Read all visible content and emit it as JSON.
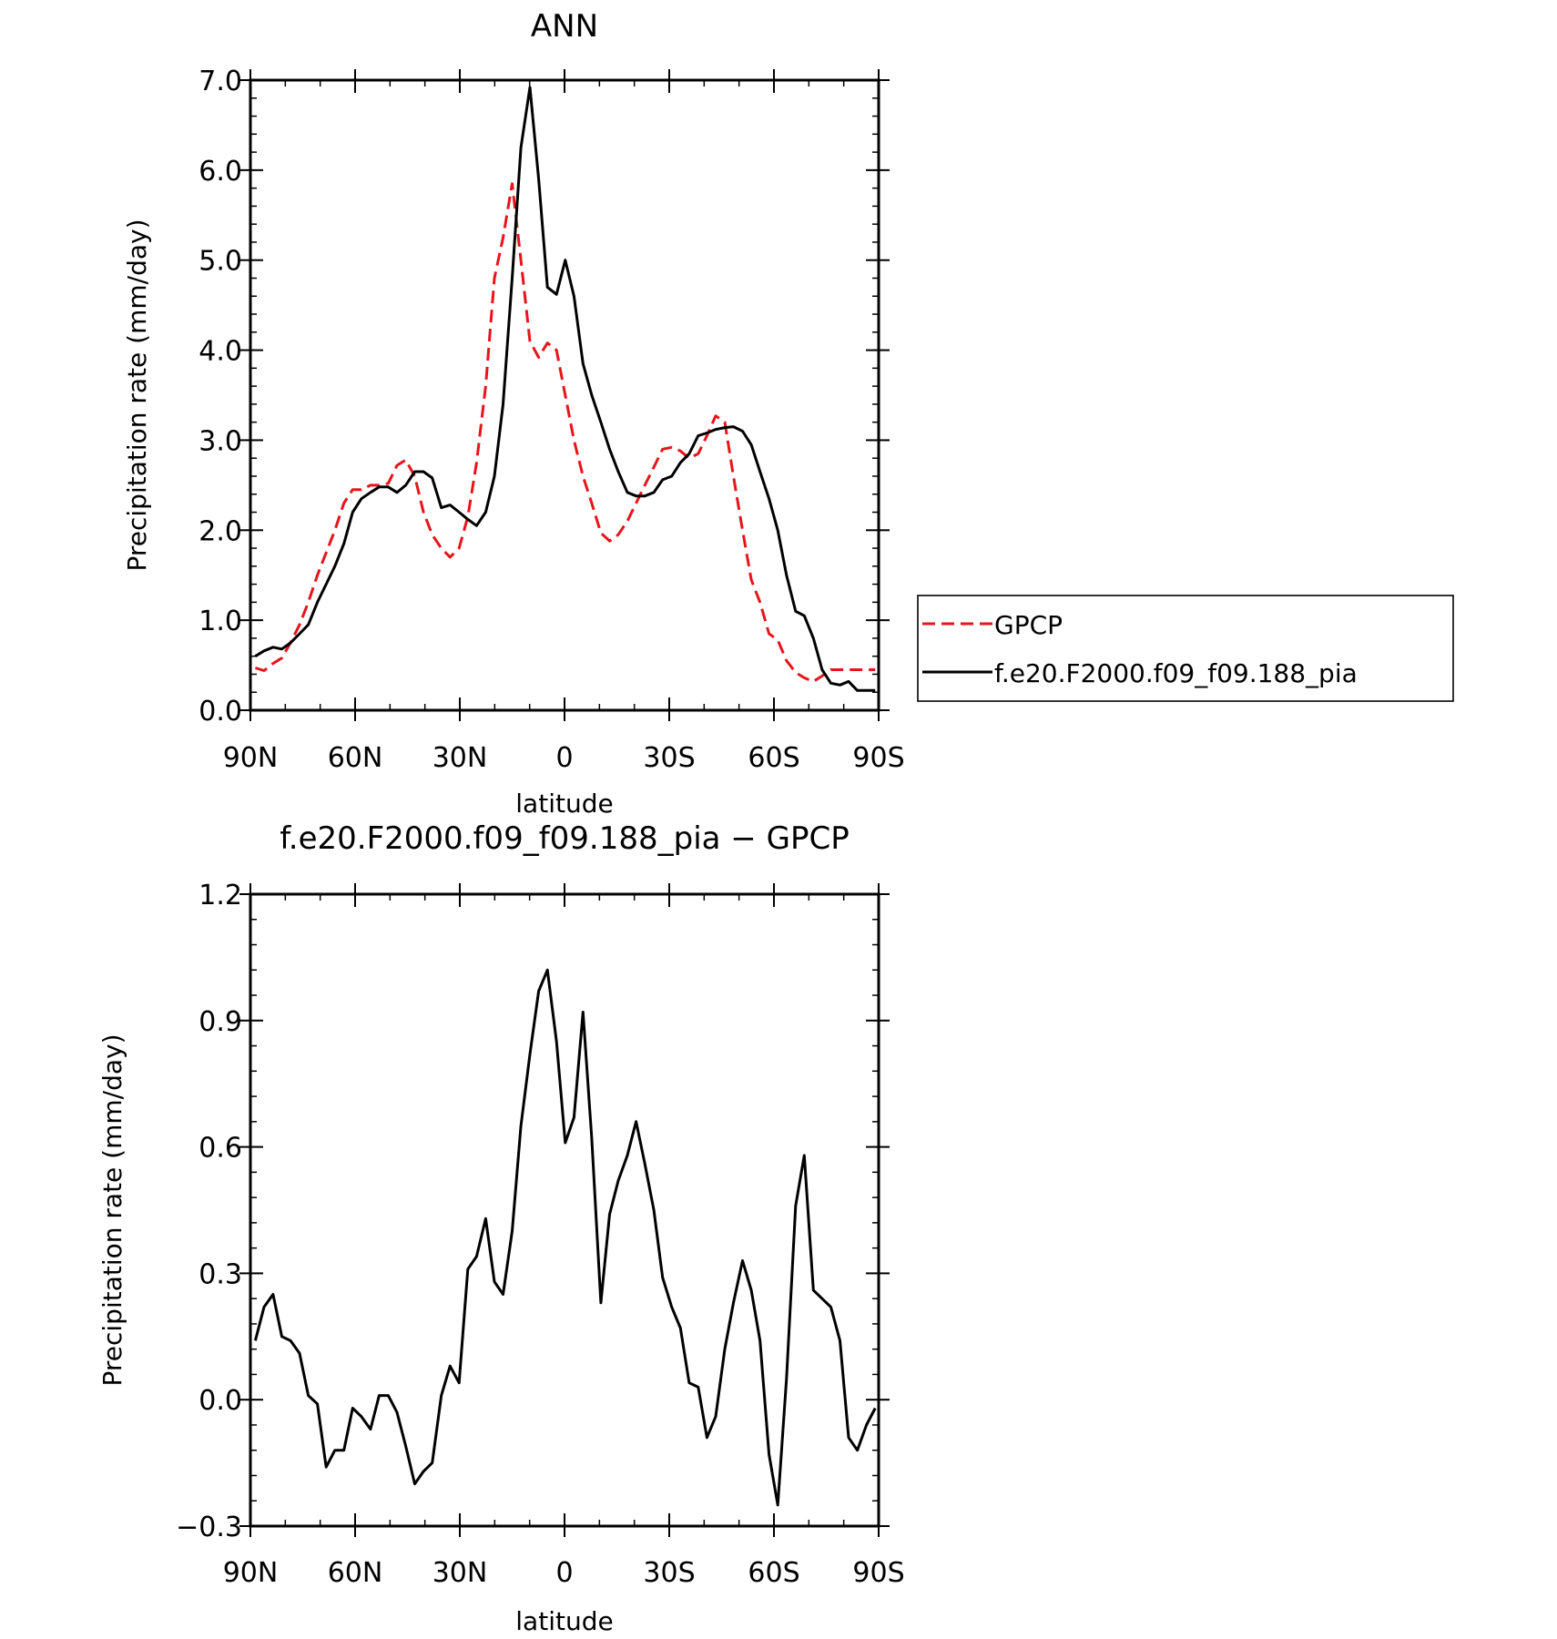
{
  "chart_data": [
    {
      "type": "line",
      "title": "ANN",
      "xlabel": "latitude",
      "ylabel": "Precipitation rate (mm/day)",
      "xlim": [
        90,
        -90
      ],
      "ylim": [
        0,
        7
      ],
      "x_tick_values": [
        90,
        60,
        30,
        0,
        -30,
        -60,
        -90
      ],
      "x_tick_labels": [
        "90N",
        "60N",
        "30N",
        "0",
        "30S",
        "60S",
        "90S"
      ],
      "y_tick_values": [
        0,
        1,
        2,
        3,
        4,
        5,
        6,
        7
      ],
      "y_tick_labels": [
        "0.0",
        "1.0",
        "2.0",
        "3.0",
        "4.0",
        "5.0",
        "6.0",
        "7.0"
      ],
      "legend": "right",
      "x": [
        88.6,
        86.1,
        83.5,
        81.0,
        78.5,
        75.9,
        73.4,
        70.8,
        68.3,
        65.8,
        63.2,
        60.7,
        58.2,
        55.6,
        53.1,
        50.5,
        48.0,
        45.5,
        42.9,
        40.4,
        37.9,
        35.3,
        32.8,
        30.2,
        27.7,
        25.2,
        22.6,
        20.1,
        17.6,
        15.0,
        12.5,
        9.9,
        7.4,
        4.9,
        2.3,
        -0.2,
        -2.7,
        -5.3,
        -7.8,
        -10.4,
        -12.9,
        -15.4,
        -18.0,
        -20.5,
        -23.0,
        -25.6,
        -28.1,
        -30.7,
        -33.2,
        -35.7,
        -38.3,
        -40.8,
        -43.3,
        -45.9,
        -48.4,
        -51.0,
        -53.5,
        -56.0,
        -58.6,
        -61.1,
        -63.6,
        -66.2,
        -68.7,
        -71.3,
        -73.8,
        -76.3,
        -78.9,
        -81.4,
        -83.9,
        -86.5,
        -89.0
      ],
      "series": [
        {
          "name": "GPCP",
          "color": "#e8141b",
          "dash": "dashed",
          "values": [
            0.47,
            0.44,
            0.52,
            0.58,
            0.75,
            0.95,
            1.2,
            1.5,
            1.75,
            2.0,
            2.3,
            2.45,
            2.45,
            2.5,
            2.5,
            2.52,
            2.72,
            2.78,
            2.6,
            2.2,
            1.95,
            1.8,
            1.7,
            1.8,
            2.15,
            2.75,
            3.6,
            4.8,
            5.25,
            5.85,
            5.0,
            4.1,
            3.92,
            4.08,
            4.0,
            3.5,
            3.0,
            2.6,
            2.3,
            1.97,
            1.88,
            1.95,
            2.1,
            2.3,
            2.5,
            2.7,
            2.9,
            2.92,
            2.88,
            2.8,
            2.85,
            3.05,
            3.27,
            3.2,
            2.6,
            2.0,
            1.45,
            1.2,
            0.85,
            0.78,
            0.55,
            0.42,
            0.36,
            0.32,
            0.38,
            0.45,
            0.45,
            0.45,
            0.45,
            0.45,
            0.45
          ]
        },
        {
          "name": "f.e20.F2000.f09_f09.188_pia",
          "color": "#000000",
          "dash": "solid",
          "values": [
            0.6,
            0.66,
            0.7,
            0.68,
            0.75,
            0.85,
            0.95,
            1.2,
            1.4,
            1.6,
            1.85,
            2.2,
            2.35,
            2.42,
            2.48,
            2.48,
            2.42,
            2.5,
            2.65,
            2.65,
            2.58,
            2.25,
            2.28,
            2.2,
            2.12,
            2.05,
            2.2,
            2.6,
            3.4,
            4.8,
            6.25,
            6.92,
            5.9,
            4.7,
            4.62,
            5.0,
            4.6,
            3.85,
            3.5,
            3.2,
            2.9,
            2.65,
            2.42,
            2.38,
            2.38,
            2.42,
            2.56,
            2.6,
            2.75,
            2.85,
            3.05,
            3.08,
            3.12,
            3.14,
            3.15,
            3.1,
            2.95,
            2.65,
            2.35,
            2.0,
            1.5,
            1.1,
            1.05,
            0.8,
            0.45,
            0.3,
            0.28,
            0.32,
            0.22,
            0.22,
            0.22
          ]
        }
      ]
    },
    {
      "type": "line",
      "title": "f.e20.F2000.f09_f09.188_pia − GPCP",
      "xlabel": "latitude",
      "ylabel": "Precipitation rate (mm/day)",
      "xlim": [
        90,
        -90
      ],
      "ylim": [
        -0.3,
        1.2
      ],
      "x_tick_values": [
        90,
        60,
        30,
        0,
        -30,
        -60,
        -90
      ],
      "x_tick_labels": [
        "90N",
        "60N",
        "30N",
        "0",
        "30S",
        "60S",
        "90S"
      ],
      "y_tick_values": [
        -0.3,
        0,
        0.3,
        0.6,
        0.9,
        1.2
      ],
      "y_tick_labels": [
        "−0.3",
        "0.0",
        "0.3",
        "0.6",
        "0.9",
        "1.2"
      ],
      "x": [
        88.6,
        86.1,
        83.5,
        81.0,
        78.5,
        75.9,
        73.4,
        70.8,
        68.3,
        65.8,
        63.2,
        60.7,
        58.2,
        55.6,
        53.1,
        50.5,
        48.0,
        45.5,
        42.9,
        40.4,
        37.9,
        35.3,
        32.8,
        30.2,
        27.7,
        25.2,
        22.6,
        20.1,
        17.6,
        15.0,
        12.5,
        9.9,
        7.4,
        4.9,
        2.3,
        -0.2,
        -2.7,
        -5.3,
        -7.8,
        -10.4,
        -12.9,
        -15.4,
        -18.0,
        -20.5,
        -23.0,
        -25.6,
        -28.1,
        -30.7,
        -33.2,
        -35.7,
        -38.3,
        -40.8,
        -43.3,
        -45.9,
        -48.4,
        -51.0,
        -53.5,
        -56.0,
        -58.6,
        -61.1,
        -63.6,
        -66.2,
        -68.7,
        -71.3,
        -73.8,
        -76.3,
        -78.9,
        -81.4,
        -83.9,
        -86.5,
        -89.0
      ],
      "series": [
        {
          "color": "#000000",
          "values": [
            0.14,
            0.22,
            0.25,
            0.15,
            0.14,
            0.11,
            0.01,
            -0.01,
            -0.16,
            -0.12,
            -0.12,
            -0.02,
            -0.04,
            -0.07,
            0.01,
            0.01,
            -0.03,
            -0.11,
            -0.2,
            -0.17,
            -0.15,
            0.01,
            0.08,
            0.04,
            0.31,
            0.34,
            0.43,
            0.28,
            0.25,
            0.4,
            0.65,
            0.82,
            0.97,
            1.02,
            0.85,
            0.61,
            0.67,
            0.92,
            0.62,
            0.23,
            0.44,
            0.52,
            0.58,
            0.66,
            0.56,
            0.45,
            0.29,
            0.22,
            0.17,
            0.04,
            0.03,
            -0.09,
            -0.04,
            0.12,
            0.23,
            0.33,
            0.26,
            0.14,
            -0.13,
            -0.25,
            0.05,
            0.46,
            0.58,
            0.26,
            0.24,
            0.22,
            0.14,
            -0.09,
            -0.12,
            -0.06,
            -0.02
          ]
        }
      ]
    }
  ]
}
